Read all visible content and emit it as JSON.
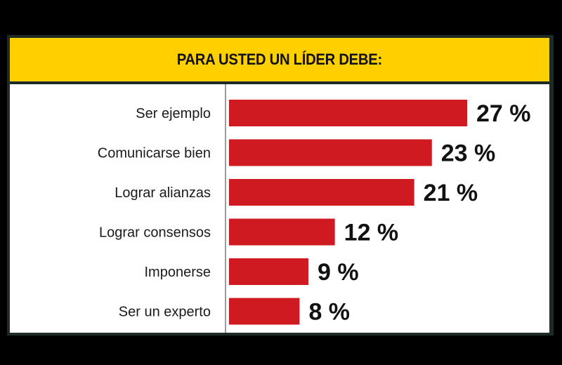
{
  "chart_data": {
    "type": "bar",
    "orientation": "horizontal",
    "title": "PARA USTED UN LÍDER DEBE:",
    "categories": [
      "Ser ejemplo",
      "Comunicarse bien",
      "Lograr alianzas",
      "Lograr consensos",
      "Imponerse",
      "Ser un experto"
    ],
    "values": [
      27,
      23,
      21,
      12,
      9,
      8
    ],
    "value_labels": [
      "27 %",
      "23 %",
      "21 %",
      "12 %",
      "9 %",
      "8 %"
    ],
    "unit": "%",
    "xlim": [
      0,
      27
    ],
    "grid": false,
    "legend": "none",
    "colors": {
      "bar": "#d01a22",
      "header": "#ffd000",
      "frame": "#1e2a26",
      "axis": "#3a3a3a"
    }
  }
}
